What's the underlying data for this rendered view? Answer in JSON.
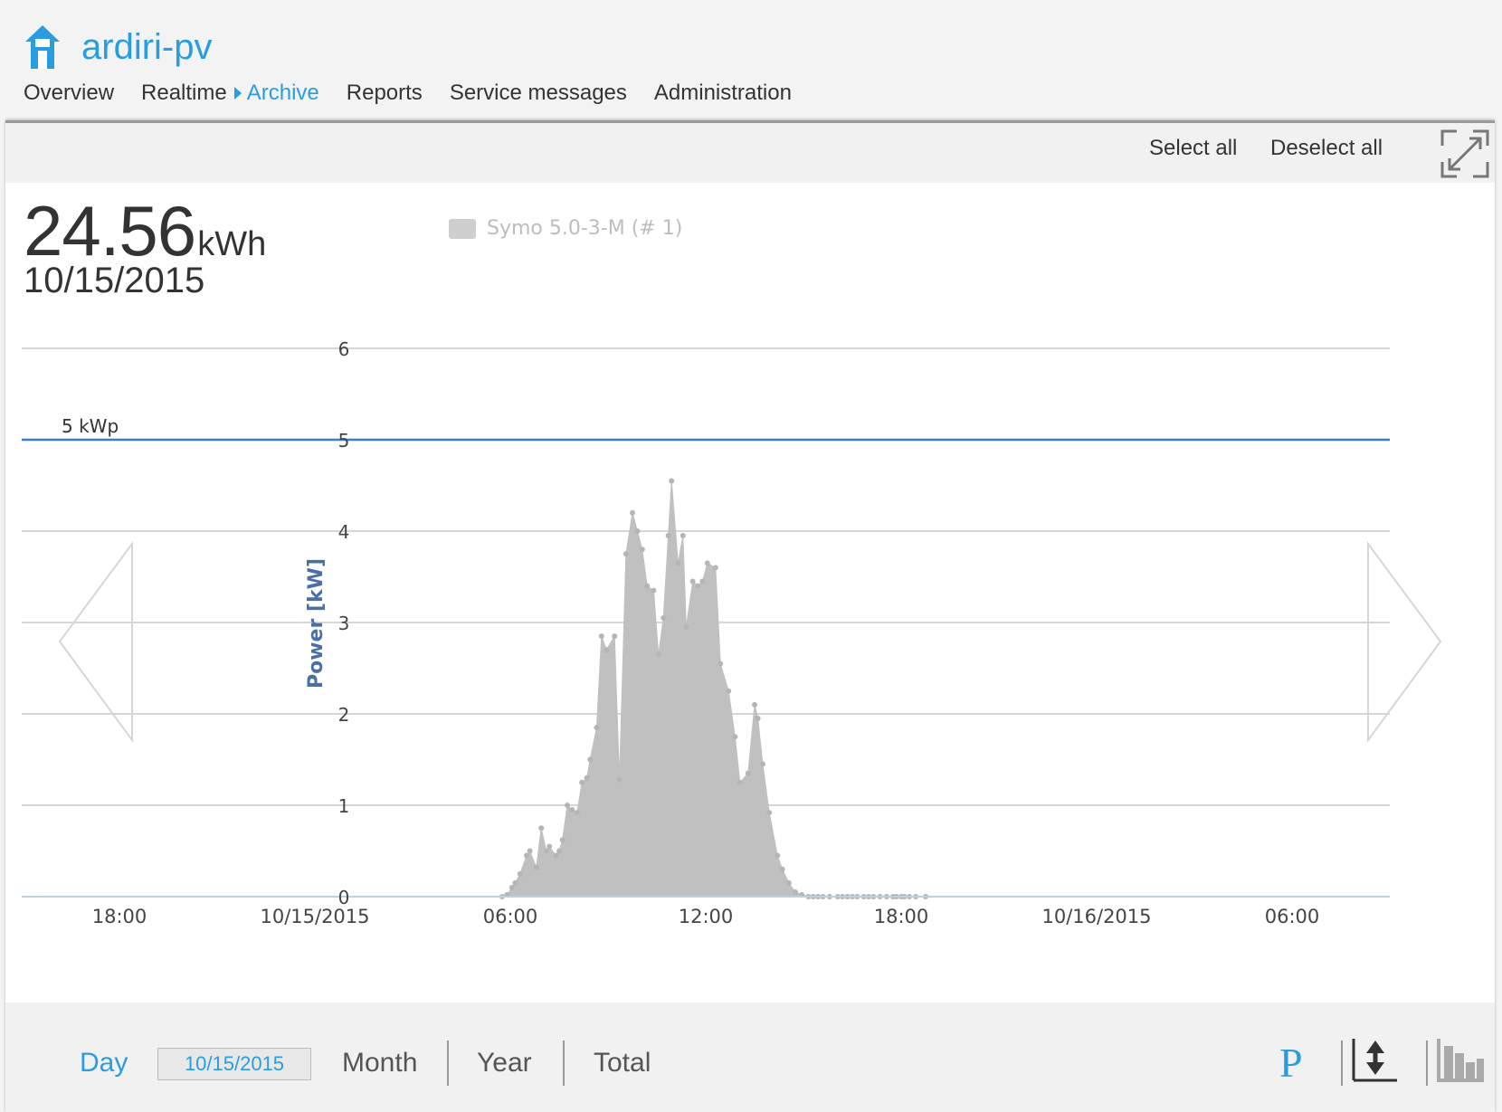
{
  "app": {
    "title": "ardiri-pv",
    "home_icon": "house-icon",
    "accent_color": "#2a9de0"
  },
  "nav": {
    "overview": "Overview",
    "realtime": "Realtime",
    "archive": "Archive",
    "reports": "Reports",
    "service_messages": "Service messages",
    "administration": "Administration"
  },
  "toolbar": {
    "select_all": "Select all",
    "deselect_all": "Deselect all",
    "expand_icon": "expand-icon"
  },
  "summary": {
    "energy_value": "24.56",
    "energy_unit": "kWh",
    "date": "10/15/2015"
  },
  "legend": {
    "series_label": "Symo 5.0-3-M (# 1)",
    "series_color": "#c0c0c0"
  },
  "chart_data": {
    "type": "area",
    "ylabel": "Power [kW]",
    "ylim": [
      0,
      6
    ],
    "yticks": [
      0,
      1,
      2,
      3,
      4,
      5,
      6
    ],
    "x_tick_labels": [
      "18:00",
      "10/15/2015",
      "06:00",
      "12:00",
      "18:00",
      "10/16/2015",
      "06:00"
    ],
    "x_ticks_hours": [
      -6,
      0,
      6,
      12,
      18,
      24,
      30
    ],
    "xlim_hours": [
      -9,
      33
    ],
    "plot_line": {
      "value": 5,
      "label": "5 kWp",
      "color": "#3a7bd5"
    },
    "grid": true,
    "series": [
      {
        "name": "Symo 5.0-3-M (# 1)",
        "color": "#c0c0c0",
        "x_hours": [
          5.75,
          5.9,
          6.05,
          6.15,
          6.3,
          6.5,
          6.6,
          6.8,
          6.95,
          7.1,
          7.2,
          7.4,
          7.5,
          7.6,
          7.75,
          7.9,
          8.05,
          8.2,
          8.35,
          8.45,
          8.65,
          8.8,
          8.95,
          9.2,
          9.35,
          9.55,
          9.75,
          9.9,
          10.05,
          10.2,
          10.4,
          10.55,
          10.7,
          10.85,
          10.95,
          11.15,
          11.3,
          11.4,
          11.6,
          11.75,
          11.9,
          12.05,
          12.3,
          12.45,
          12.7,
          12.9,
          13.05,
          13.3,
          13.5,
          13.6,
          13.75,
          13.95,
          14.2,
          14.35,
          14.55,
          14.75,
          14.95,
          15.15,
          15.3,
          15.45,
          15.6,
          15.8,
          16.05,
          16.2,
          16.35,
          16.5,
          16.65,
          16.85,
          17.0,
          17.15,
          17.35,
          17.55,
          17.75,
          17.85,
          18.0,
          18.1,
          18.25,
          18.45,
          18.75
        ],
        "y_kw": [
          0.0,
          0.02,
          0.1,
          0.15,
          0.25,
          0.45,
          0.5,
          0.32,
          0.75,
          0.5,
          0.55,
          0.45,
          0.5,
          0.62,
          1.0,
          0.95,
          0.92,
          1.25,
          1.3,
          1.5,
          1.85,
          2.85,
          2.7,
          2.85,
          1.28,
          3.75,
          4.2,
          4.0,
          3.8,
          3.4,
          3.35,
          2.65,
          3.05,
          3.95,
          4.55,
          3.65,
          3.95,
          2.95,
          3.45,
          3.4,
          3.45,
          3.65,
          3.6,
          2.55,
          2.25,
          1.75,
          1.25,
          1.35,
          2.1,
          1.95,
          1.45,
          0.92,
          0.45,
          0.3,
          0.15,
          0.05,
          0.02,
          0.0,
          0.0,
          0.0,
          0.0,
          0.0,
          0.0,
          0.0,
          0.0,
          0.0,
          0.0,
          0.0,
          0.0,
          0.0,
          0.0,
          0.0,
          0.0,
          0.0,
          0.0,
          0.0,
          0.0,
          0.0,
          0.0
        ]
      }
    ]
  },
  "periods": {
    "day": "Day",
    "date_value": "10/15/2015",
    "month": "Month",
    "year": "Year",
    "total": "Total"
  },
  "controls": {
    "power_button": "P",
    "scale_icon": "vertical-scale-icon",
    "chart_type_icon": "bar-chart-icon"
  }
}
